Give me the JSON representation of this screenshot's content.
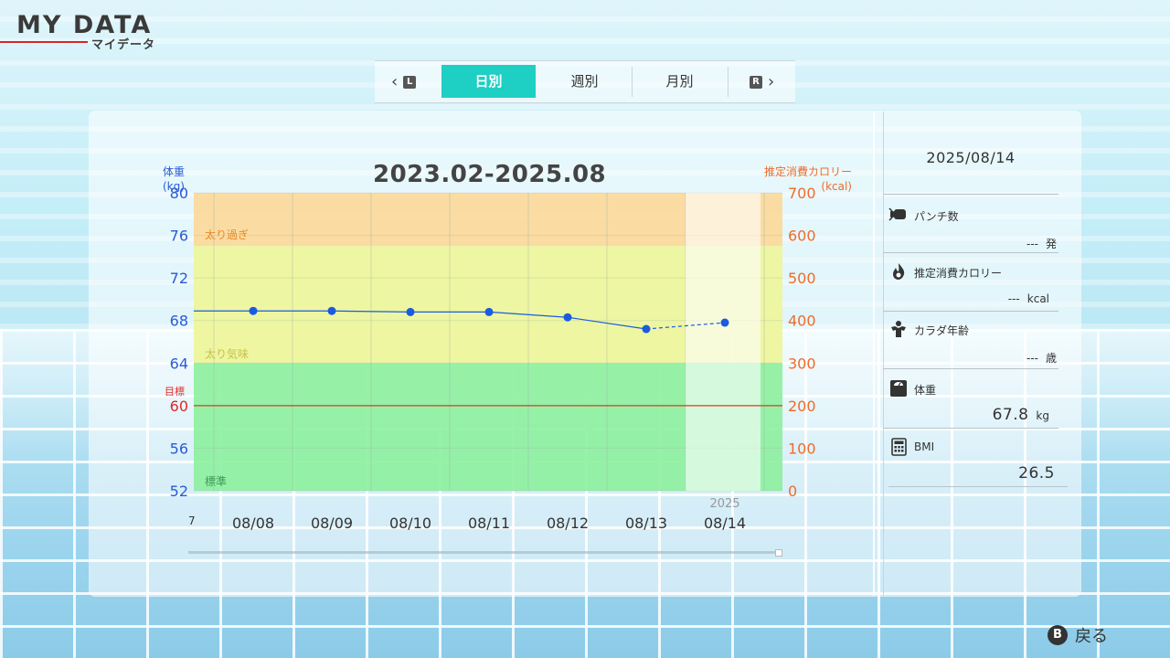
{
  "header": {
    "title": "MY DATA",
    "subtitle": "マイデータ"
  },
  "tabs": {
    "prev_key": "L",
    "next_key": "R",
    "items": [
      {
        "label": "日別",
        "active": true
      },
      {
        "label": "週別",
        "active": false
      },
      {
        "label": "月別",
        "active": false
      }
    ]
  },
  "chart": {
    "title": "2023.02-2025.08",
    "left_axis_label_line1": "体重",
    "left_axis_label_line2": "(kg)",
    "right_axis_label_line1": "推定消費カロリー",
    "right_axis_label_line2": "(kcal)",
    "target_label": "目標",
    "year_label": "2025",
    "partial_label": "7"
  },
  "chart_data": {
    "type": "line",
    "title": "2023.02-2025.08",
    "xlabel": "",
    "ylabel": "体重 (kg)",
    "y2label": "推定消費カロリー (kcal)",
    "categories": [
      "08/08",
      "08/09",
      "08/10",
      "08/11",
      "08/12",
      "08/13",
      "08/14"
    ],
    "series": [
      {
        "values": [
          68.9,
          68.9,
          68.8,
          68.8,
          68.3,
          67.2,
          67.8
        ]
      }
    ],
    "prev_value": 68.9,
    "ylim": [
      52,
      80
    ],
    "y_ticks": [
      80,
      76,
      72,
      68,
      64,
      60,
      56,
      52
    ],
    "y2lim": [
      0,
      700
    ],
    "y2_ticks": [
      700,
      600,
      500,
      400,
      300,
      200,
      100,
      0
    ],
    "target": 60,
    "zones": [
      {
        "label": "太り過ぎ",
        "from": 75,
        "to": 80,
        "color": "#fcd99a"
      },
      {
        "label": "太り気味",
        "from": 64,
        "to": 75,
        "color": "#eef59a"
      },
      {
        "label": "標準",
        "from": 52,
        "to": 64,
        "color": "#8ef0a0"
      }
    ],
    "grid": true,
    "colors": {
      "line": "#1a5be0",
      "target": "#e03a1e",
      "left_axis": "#2a5bd7",
      "right_axis": "#ee6b2b"
    }
  },
  "summary": {
    "date": "2025/08/14",
    "items": [
      {
        "icon": "punch-icon",
        "label": "パンチ数",
        "value": "---",
        "unit": "発"
      },
      {
        "icon": "flame-icon",
        "label": "推定消費カロリー",
        "value": "---",
        "unit": "kcal"
      },
      {
        "icon": "body-age-icon",
        "label": "カラダ年齢",
        "value": "---",
        "unit": "歳"
      },
      {
        "icon": "scale-icon",
        "label": "体重",
        "value": "67.8",
        "unit": "kg"
      },
      {
        "icon": "calculator-icon",
        "label": "BMI",
        "value": "26.5",
        "unit": ""
      }
    ]
  },
  "footer": {
    "back_key": "B",
    "back_label": "戻る"
  }
}
